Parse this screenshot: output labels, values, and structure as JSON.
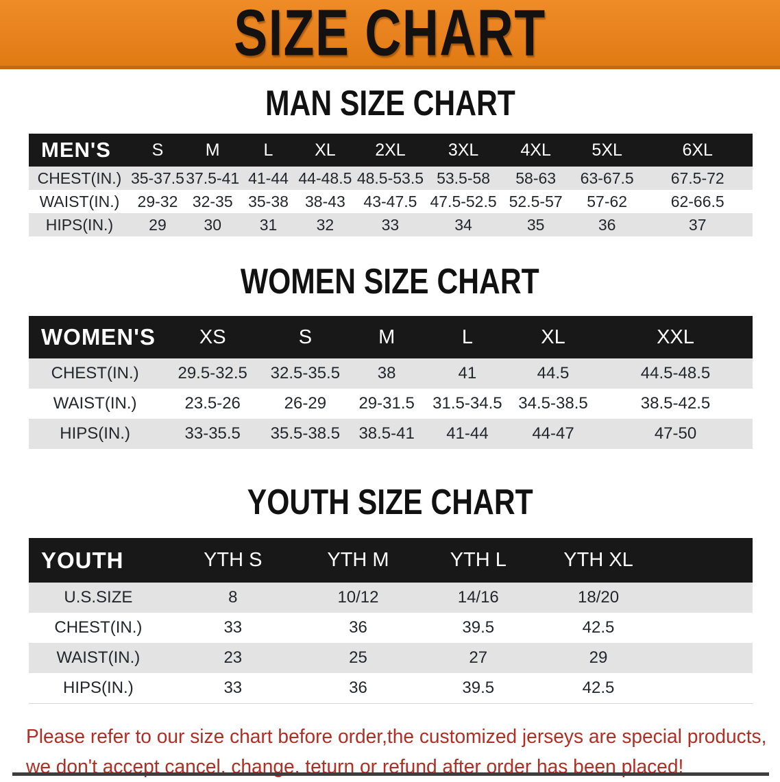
{
  "banner": {
    "title": "SIZE CHART",
    "bg_color": "#E8821E"
  },
  "colors": {
    "banner_orange": "#E8821E",
    "header_black": "#181818",
    "row_gray": "#E3E3E3",
    "warning_red": "#B02F24"
  },
  "sections": [
    {
      "heading": "MAN SIZE CHART",
      "corner": "MEN'S",
      "columns": [
        "S",
        "M",
        "L",
        "XL",
        "2XL",
        "3XL",
        "4XL",
        "5XL",
        "6XL"
      ],
      "rows": [
        {
          "label": "CHEST(IN.)",
          "values": [
            "35-37.5",
            "37.5-41",
            "41-44",
            "44-48.5",
            "48.5-53.5",
            "53.5-58",
            "58-63",
            "63-67.5",
            "67.5-72"
          ]
        },
        {
          "label": "WAIST(IN.)",
          "values": [
            "29-32",
            "32-35",
            "35-38",
            "38-43",
            "43-47.5",
            "47.5-52.5",
            "52.5-57",
            "57-62",
            "62-66.5"
          ]
        },
        {
          "label": "HIPS(IN.)",
          "values": [
            "29",
            "30",
            "31",
            "32",
            "33",
            "34",
            "35",
            "36",
            "37"
          ]
        }
      ]
    },
    {
      "heading": "WOMEN SIZE CHART",
      "corner": "WOMEN'S",
      "columns": [
        "XS",
        "S",
        "M",
        "L",
        "XL",
        "XXL"
      ],
      "rows": [
        {
          "label": "CHEST(IN.)",
          "values": [
            "29.5-32.5",
            "32.5-35.5",
            "38",
            "41",
            "44.5",
            "44.5-48.5"
          ]
        },
        {
          "label": "WAIST(IN.)",
          "values": [
            "23.5-26",
            "26-29",
            "29-31.5",
            "31.5-34.5",
            "34.5-38.5",
            "38.5-42.5"
          ]
        },
        {
          "label": "HIPS(IN.)",
          "values": [
            "33-35.5",
            "35.5-38.5",
            "38.5-41",
            "41-44",
            "44-47",
            "47-50"
          ]
        }
      ]
    },
    {
      "heading": "YOUTH SIZE CHART",
      "corner": "YOUTH",
      "columns": [
        "YTH S",
        "YTH M",
        "YTH L",
        "YTH XL"
      ],
      "rows": [
        {
          "label": "U.S.SIZE",
          "values": [
            "8",
            "10/12",
            "14/16",
            "18/20"
          ]
        },
        {
          "label": "CHEST(IN.)",
          "values": [
            "33",
            "36",
            "39.5",
            "42.5"
          ]
        },
        {
          "label": "WAIST(IN.)",
          "values": [
            "23",
            "25",
            "27",
            "29"
          ]
        },
        {
          "label": "HIPS(IN.)",
          "values": [
            "33",
            "36",
            "39.5",
            "42.5"
          ]
        }
      ]
    }
  ],
  "footer": {
    "line1": "Please refer to our size chart before order,the customized jerseys are special products,",
    "line2": "we don't accept cancel, change, teturn or refund after order has been placed!"
  }
}
